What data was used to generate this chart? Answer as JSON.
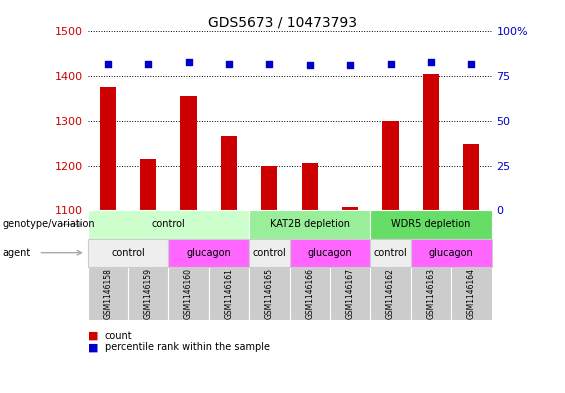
{
  "title": "GDS5673 / 10473793",
  "samples": [
    "GSM1146158",
    "GSM1146159",
    "GSM1146160",
    "GSM1146161",
    "GSM1146165",
    "GSM1146166",
    "GSM1146167",
    "GSM1146162",
    "GSM1146163",
    "GSM1146164"
  ],
  "counts": [
    1375,
    1215,
    1355,
    1265,
    1200,
    1205,
    1108,
    1300,
    1405,
    1248
  ],
  "percentiles": [
    82,
    82,
    83,
    82,
    82,
    81,
    81,
    82,
    83,
    82
  ],
  "ylim_left": [
    1100,
    1500
  ],
  "ylim_right": [
    0,
    100
  ],
  "yticks_left": [
    1100,
    1200,
    1300,
    1400,
    1500
  ],
  "yticks_right": [
    0,
    25,
    50,
    75,
    100
  ],
  "bar_color": "#cc0000",
  "dot_color": "#0000cc",
  "bar_width": 0.4,
  "genotype_groups": [
    {
      "label": "control",
      "start": 0,
      "end": 4,
      "color": "#ccffcc"
    },
    {
      "label": "KAT2B depletion",
      "start": 4,
      "end": 7,
      "color": "#99ee99"
    },
    {
      "label": "WDR5 depletion",
      "start": 7,
      "end": 10,
      "color": "#66dd66"
    }
  ],
  "agent_groups": [
    {
      "label": "control",
      "start": 0,
      "end": 2,
      "color": "#eeeeee"
    },
    {
      "label": "glucagon",
      "start": 2,
      "end": 4,
      "color": "#ff66ff"
    },
    {
      "label": "control",
      "start": 4,
      "end": 5,
      "color": "#eeeeee"
    },
    {
      "label": "glucagon",
      "start": 5,
      "end": 7,
      "color": "#ff66ff"
    },
    {
      "label": "control",
      "start": 7,
      "end": 8,
      "color": "#eeeeee"
    },
    {
      "label": "glucagon",
      "start": 8,
      "end": 10,
      "color": "#ff66ff"
    }
  ],
  "legend_count_color": "#cc0000",
  "legend_pct_color": "#0000cc",
  "row_label_genotype": "genotype/variation",
  "row_label_agent": "agent",
  "annotation_arrow_color": "#aaaaaa"
}
